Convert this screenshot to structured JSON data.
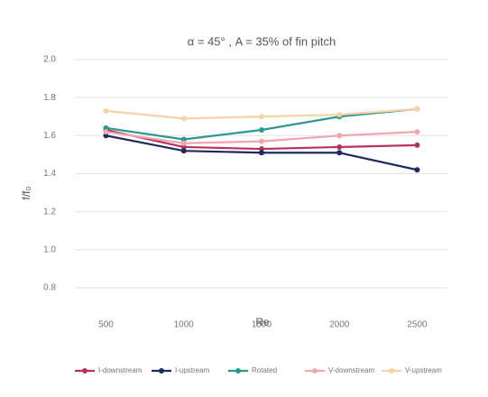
{
  "chart_data": {
    "type": "line",
    "title": "α = 45° , A = 35% of fin pitch",
    "x_label": "Re",
    "y_label": "f/f₀",
    "x": [
      500,
      1000,
      1500,
      2000,
      2500
    ],
    "xlim": [
      300,
      2700
    ],
    "xticks": [
      500,
      1000,
      1500,
      2000,
      2500
    ],
    "ylim": [
      0.7,
      2.0
    ],
    "yticks": [
      {
        "value": 0.8,
        "label": "0.8"
      },
      {
        "value": 1.0,
        "label": "1.0"
      },
      {
        "value": 1.2,
        "label": "1.2"
      },
      {
        "value": 1.4,
        "label": "1.4"
      },
      {
        "value": 1.6,
        "label": "1.6"
      },
      {
        "value": 1.8,
        "label": "1.8"
      },
      {
        "value": 2.0,
        "label": "2.0"
      }
    ],
    "grid": true,
    "legend": "bottom",
    "series": [
      {
        "name": "I-downstream",
        "color": "#b8325c",
        "values": [
          1.63,
          1.54,
          1.53,
          1.54,
          1.55
        ]
      },
      {
        "name": "I-upstream",
        "color": "#1f2a5e",
        "values": [
          1.6,
          1.52,
          1.51,
          1.51,
          1.42
        ]
      },
      {
        "name": "Rotated",
        "color": "#2a9a8e",
        "values": [
          1.64,
          1.58,
          1.63,
          1.7,
          1.74
        ]
      },
      {
        "name": "V-downstream",
        "color": "#f2a5ad",
        "values": [
          1.62,
          1.56,
          1.57,
          1.6,
          1.62
        ]
      },
      {
        "name": "V-upstream",
        "color": "#f6d3a6",
        "values": [
          1.73,
          1.69,
          1.7,
          1.71,
          1.74
        ]
      }
    ]
  }
}
